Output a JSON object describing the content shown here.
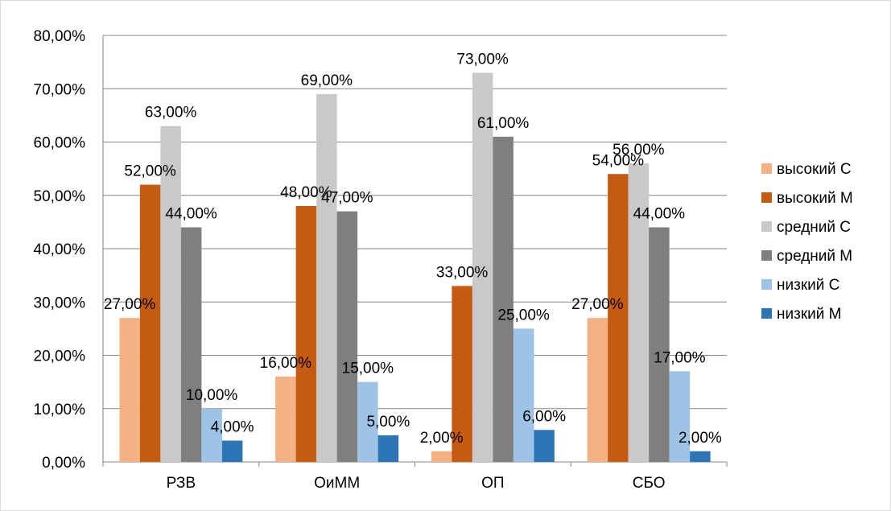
{
  "chart_data": {
    "type": "bar",
    "categories": [
      "РЗВ",
      "ОиММ",
      "ОП",
      "СБО"
    ],
    "series": [
      {
        "name": "высокий С",
        "color": "#F4B183",
        "values": [
          27,
          16,
          2,
          27
        ]
      },
      {
        "name": "высокий М",
        "color": "#C55A11",
        "values": [
          52,
          48,
          33,
          54
        ]
      },
      {
        "name": "средний С",
        "color": "#C9C9C9",
        "values": [
          63,
          69,
          73,
          56
        ]
      },
      {
        "name": "средний М",
        "color": "#7F7F7F",
        "values": [
          44,
          47,
          61,
          44
        ]
      },
      {
        "name": "низкий С",
        "color": "#9DC3E6",
        "values": [
          10,
          15,
          25,
          17
        ]
      },
      {
        "name": "низкий М",
        "color": "#2E75B6",
        "values": [
          4,
          5,
          6,
          2
        ]
      }
    ],
    "ylim": [
      0,
      80
    ],
    "yticks": [
      "0,00%",
      "10,00%",
      "20,00%",
      "30,00%",
      "40,00%",
      "50,00%",
      "60,00%",
      "70,00%",
      "80,00%"
    ],
    "data_labels": [
      [
        "27,00%",
        "16,00%",
        "2,00%",
        "27,00%"
      ],
      [
        "52,00%",
        "48,00%",
        "33,00%",
        "54,00%"
      ],
      [
        "63,00%",
        "69,00%",
        "73,00%",
        "56,00%"
      ],
      [
        "44,00%",
        "47,00%",
        "61,00%",
        "44,00%"
      ],
      [
        "10,00%",
        "15,00%",
        "25,00%",
        "17,00%"
      ],
      [
        "4,00%",
        "5,00%",
        "6,00%",
        "2,00%"
      ]
    ],
    "grid": true,
    "legend_position": "right"
  }
}
